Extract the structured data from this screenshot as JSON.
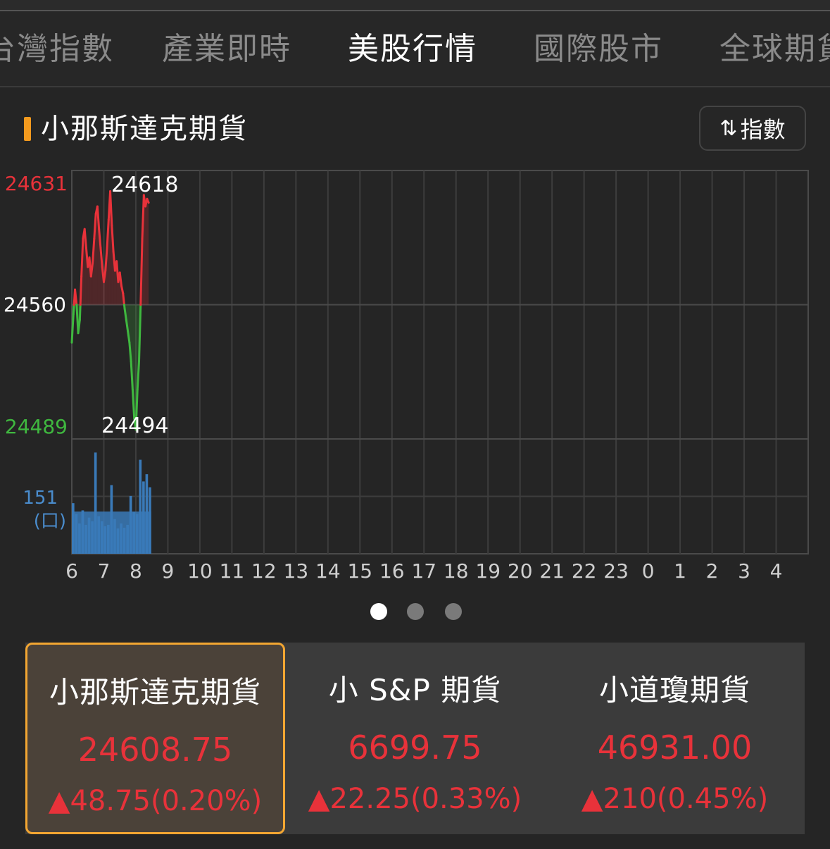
{
  "tabs": [
    {
      "label": "台灣指數",
      "active": false
    },
    {
      "label": "產業即時",
      "active": false
    },
    {
      "label": "美股行情",
      "active": true
    },
    {
      "label": "國際股市",
      "active": false
    },
    {
      "label": "全球期貨",
      "active": false
    }
  ],
  "section": {
    "title": "小那斯達克期貨",
    "toggle_icon": "swap-vertical-icon",
    "toggle_label": "指數"
  },
  "colors": {
    "up": "#e8323a",
    "down": "#3fb83f",
    "volume": "#3a7ab8",
    "accent": "#f3a632"
  },
  "chart_data": {
    "type": "line",
    "title": "",
    "price_axis_labels": {
      "high": "24631",
      "reference": "24560",
      "low": "24489"
    },
    "ylim": [
      24489,
      24631
    ],
    "reference": 24560,
    "annotations": {
      "max": "24618",
      "min": "24494"
    },
    "volume_axis_label": "151",
    "volume_unit": "(口)",
    "volume_max": 151,
    "x_ticks": [
      "6",
      "7",
      "8",
      "9",
      "10",
      "11",
      "12",
      "13",
      "14",
      "15",
      "16",
      "17",
      "18",
      "19",
      "20",
      "21",
      "22",
      "23",
      "0",
      "1",
      "2",
      "3",
      "4"
    ],
    "price_series": {
      "x": [
        6.0,
        6.05,
        6.1,
        6.15,
        6.2,
        6.25,
        6.3,
        6.35,
        6.4,
        6.45,
        6.5,
        6.55,
        6.6,
        6.65,
        6.7,
        6.75,
        6.8,
        6.85,
        6.9,
        6.95,
        7.0,
        7.05,
        7.1,
        7.15,
        7.2,
        7.25,
        7.3,
        7.35,
        7.4,
        7.45,
        7.5,
        7.55,
        7.6,
        7.65,
        7.7,
        7.75,
        7.8,
        7.85,
        7.9,
        7.95,
        8.0,
        8.05,
        8.1,
        8.15,
        8.2,
        8.25,
        8.3,
        8.35,
        8.4
      ],
      "y": [
        24540,
        24555,
        24568,
        24560,
        24545,
        24552,
        24575,
        24595,
        24600,
        24590,
        24580,
        24585,
        24575,
        24582,
        24595,
        24608,
        24612,
        24600,
        24590,
        24580,
        24572,
        24578,
        24590,
        24605,
        24620,
        24602,
        24588,
        24578,
        24583,
        24572,
        24577,
        24570,
        24566,
        24558,
        24552,
        24546,
        24540,
        24530,
        24515,
        24500,
        24494,
        24515,
        24530,
        24560,
        24595,
        24618,
        24612,
        24616,
        24614
      ]
    },
    "volume_series": {
      "x": [
        6.0,
        6.1,
        6.2,
        6.3,
        6.4,
        6.5,
        6.6,
        6.7,
        6.8,
        6.9,
        7.0,
        7.1,
        7.2,
        7.3,
        7.4,
        7.5,
        7.6,
        7.7,
        7.8,
        7.9,
        8.0,
        8.1,
        8.2,
        8.3,
        8.4
      ],
      "values": [
        70,
        55,
        42,
        60,
        40,
        50,
        45,
        140,
        52,
        45,
        38,
        40,
        95,
        48,
        35,
        42,
        36,
        40,
        80,
        58,
        55,
        130,
        100,
        110,
        92
      ]
    }
  },
  "pager": {
    "count": 3,
    "active": 0
  },
  "cards": [
    {
      "name": "小那斯達克期貨",
      "price": "24608.75",
      "change": "▲48.75(0.20%)",
      "selected": true
    },
    {
      "name": "小 S&P 期貨",
      "price": "6699.75",
      "change": "▲22.25(0.33%)",
      "selected": false
    },
    {
      "name": "小道瓊期貨",
      "price": "46931.00",
      "change": "▲210(0.45%)",
      "selected": false
    }
  ]
}
